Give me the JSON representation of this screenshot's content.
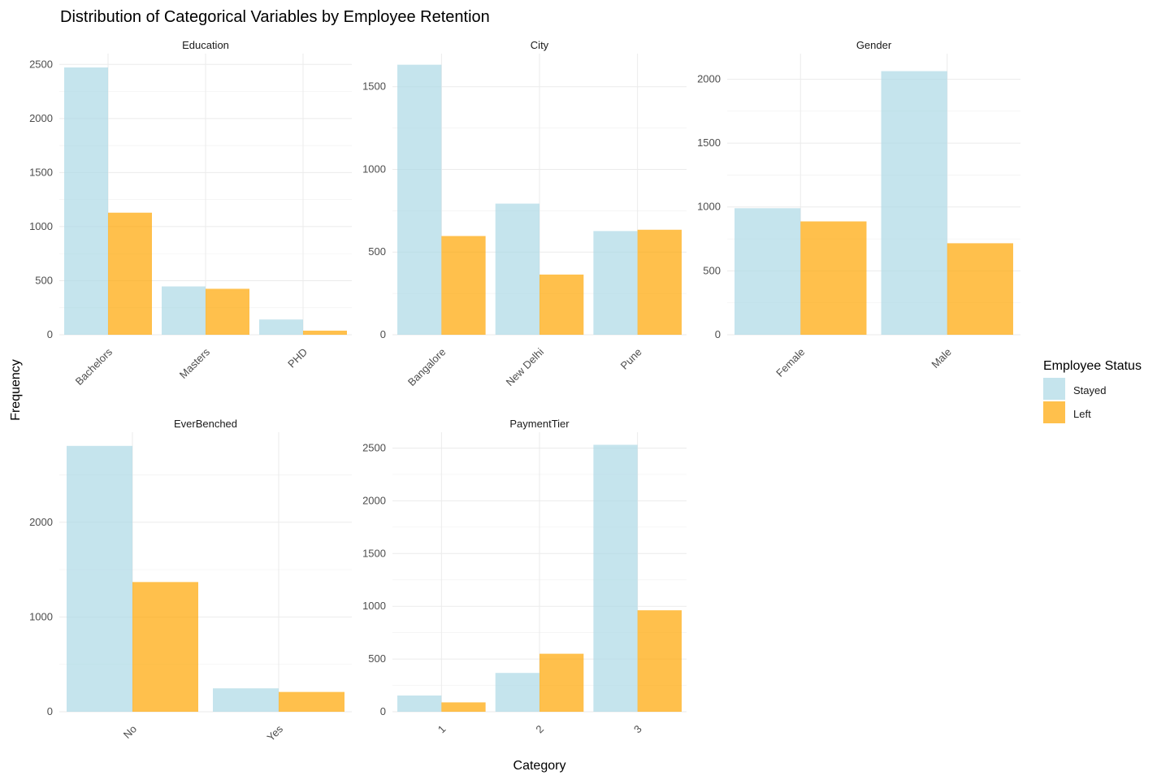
{
  "chart_data": {
    "type": "bar",
    "title": "Distribution of Categorical Variables by Employee Retention",
    "xlabel": "Category",
    "ylabel": "Frequency",
    "legend": {
      "title": "Employee Status",
      "placement": "right",
      "entries": [
        {
          "name": "Stayed",
          "color": "#add8e6"
        },
        {
          "name": "Left",
          "color": "#ffa500"
        }
      ]
    },
    "grid": true,
    "facets": [
      {
        "name": "Education",
        "categories": [
          "Bachelors",
          "Masters",
          "PHD"
        ],
        "series": [
          {
            "name": "Stayed",
            "values": [
              2472,
              447,
              141
            ]
          },
          {
            "name": "Left",
            "values": [
              1129,
              425,
              38
            ]
          }
        ],
        "ylim": [
          0,
          2600
        ],
        "yticks": [
          "0",
          "500",
          "1000",
          "1500",
          "2000",
          "2500"
        ]
      },
      {
        "name": "City",
        "categories": [
          "Bangalore",
          "New Delhi",
          "Pune"
        ],
        "series": [
          {
            "name": "Stayed",
            "values": [
              1633,
              793,
              627
            ]
          },
          {
            "name": "Left",
            "values": [
              597,
              364,
              635
            ]
          }
        ],
        "ylim": [
          0,
          1700
        ],
        "yticks": [
          "0",
          "500",
          "1000",
          "1500"
        ]
      },
      {
        "name": "Gender",
        "categories": [
          "Female",
          "Male"
        ],
        "series": [
          {
            "name": "Stayed",
            "values": [
              990,
              2063
            ]
          },
          {
            "name": "Left",
            "values": [
              887,
              716
            ]
          }
        ],
        "ylim": [
          0,
          2200
        ],
        "yticks": [
          "0",
          "500",
          "1000",
          "1500",
          "2000"
        ]
      },
      {
        "name": "EverBenched",
        "categories": [
          "No",
          "Yes"
        ],
        "series": [
          {
            "name": "Stayed",
            "values": [
              2806,
              247
            ]
          },
          {
            "name": "Left",
            "values": [
              1369,
              209
            ]
          }
        ],
        "ylim": [
          0,
          2950
        ],
        "yticks": [
          "0",
          "1000",
          "2000"
        ]
      },
      {
        "name": "PaymentTier",
        "categories": [
          "1",
          "2",
          "3"
        ],
        "series": [
          {
            "name": "Stayed",
            "values": [
              154,
              368,
              2531
            ]
          },
          {
            "name": "Left",
            "values": [
              89,
              550,
              962
            ]
          }
        ],
        "ylim": [
          0,
          2650
        ],
        "yticks": [
          "0",
          "500",
          "1000",
          "1500",
          "2000",
          "2500"
        ]
      }
    ]
  }
}
